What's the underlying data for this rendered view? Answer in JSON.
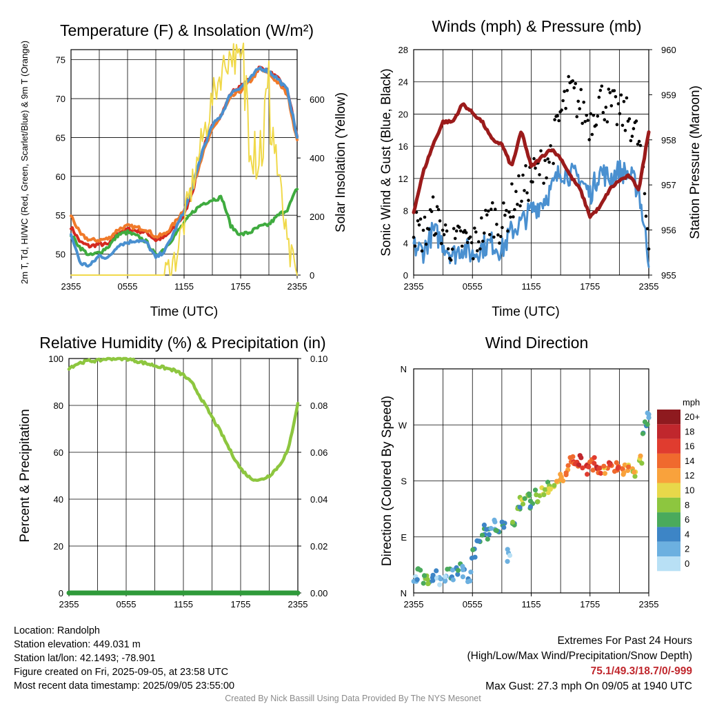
{
  "chart_data": [
    {
      "type": "line",
      "title": "Temperature (F) & Insolation (W/m²)",
      "xlabel": "Time (UTC)",
      "ylabel": "2m T, Td, HI/WC (Red, Green, Scarlet/Blue) & 9m T (Orange)",
      "ylabel_right": "Solar Insolation (Yellow)",
      "x_ticks": [
        "2355",
        "0555",
        "1155",
        "1755",
        "2355"
      ],
      "y_ticks": [
        50,
        55,
        60,
        65,
        70,
        75
      ],
      "y_right_ticks": [
        0,
        200,
        400,
        600
      ],
      "ylim": [
        47.3,
        76.3
      ],
      "ylim_right": [
        0,
        770
      ],
      "x": [
        0,
        1,
        2,
        3,
        4,
        5,
        6,
        7,
        8,
        9,
        10,
        11,
        12,
        13,
        14,
        15,
        16,
        17,
        18,
        19,
        20,
        21,
        22,
        23,
        24
      ],
      "series": [
        {
          "color": "#d42a20",
          "values": [
            53.5,
            51.5,
            51.0,
            51.3,
            51.2,
            52.8,
            53.2,
            53.0,
            52.8,
            51.8,
            52.2,
            53.5,
            55.0,
            58.5,
            63.5,
            66.5,
            68.0,
            70.8,
            71.5,
            72.5,
            74.0,
            73.5,
            72.5,
            71.0,
            65.0
          ]
        },
        {
          "color": "#f07a2a",
          "values": [
            55.0,
            52.5,
            51.8,
            51.8,
            52.0,
            53.2,
            53.6,
            53.4,
            53.2,
            52.2,
            52.6,
            54.0,
            55.8,
            59.0,
            63.0,
            66.0,
            68.0,
            70.2,
            71.0,
            72.2,
            73.8,
            73.2,
            72.0,
            70.5,
            64.5
          ]
        },
        {
          "color": "#3fab3f",
          "values": [
            52.5,
            50.8,
            49.8,
            50.2,
            51.0,
            52.5,
            52.8,
            52.3,
            51.6,
            49.8,
            50.8,
            52.4,
            54.0,
            55.5,
            56.5,
            57.0,
            57.3,
            53.5,
            52.5,
            52.8,
            53.5,
            53.8,
            55.0,
            55.8,
            58.5
          ]
        },
        {
          "color": "#4a90d0",
          "values": [
            52.5,
            48.8,
            48.5,
            49.8,
            49.5,
            51.2,
            51.5,
            51.8,
            51.5,
            49.5,
            50.5,
            53.0,
            55.5,
            59.0,
            63.5,
            66.5,
            68.0,
            70.8,
            71.5,
            72.5,
            74.0,
            73.5,
            72.5,
            71.0,
            65.0
          ]
        },
        {
          "color": "#f0d94a",
          "values": [
            0,
            0,
            0,
            0,
            0,
            0,
            0,
            0,
            0,
            0,
            0,
            50,
            180,
            330,
            470,
            600,
            700,
            760,
            720,
            550,
            420,
            600,
            350,
            80,
            0
          ]
        }
      ]
    },
    {
      "type": "line",
      "title": "Winds (mph) & Pressure (mb)",
      "xlabel": "Time (UTC)",
      "ylabel": "Sonic Wind & Gust (Blue, Black)",
      "ylabel_right": "Station Pressure (Maroon)",
      "x_ticks": [
        "2355",
        "0555",
        "1155",
        "1755",
        "2355"
      ],
      "y_ticks": [
        0,
        4,
        8,
        12,
        16,
        20,
        24,
        28
      ],
      "y_right_ticks": [
        955,
        956,
        957,
        958,
        959,
        960
      ],
      "ylim": [
        0,
        28
      ],
      "ylim_right": [
        955,
        960
      ],
      "x": [
        0,
        1,
        2,
        3,
        4,
        5,
        6,
        7,
        8,
        9,
        10,
        11,
        12,
        13,
        14,
        15,
        16,
        17,
        18,
        19,
        20,
        21,
        22,
        23,
        24
      ],
      "series": [
        {
          "color": "#4a90d0",
          "values": [
            3.5,
            3.0,
            5.5,
            4.0,
            2.5,
            3.5,
            2.5,
            3.5,
            4.0,
            3.0,
            5.5,
            6.5,
            8.0,
            9.0,
            10.5,
            13.0,
            12.5,
            12.0,
            10.0,
            13.0,
            12.0,
            13.0,
            12.5,
            10.5,
            2.0
          ]
        },
        {
          "color": "#000000",
          "values": [
            6.0,
            5.0,
            7.5,
            5.5,
            3.5,
            4.5,
            3.5,
            5.5,
            7.5,
            6.0,
            9.0,
            10.5,
            12.0,
            13.5,
            15.0,
            20.0,
            23.0,
            21.0,
            19.0,
            22.0,
            21.0,
            20.0,
            19.5,
            16.5,
            4.0
          ]
        },
        {
          "color": "#9b1b1b",
          "values": [
            956.4,
            957.3,
            957.9,
            958.4,
            958.4,
            958.8,
            958.6,
            958.4,
            958.0,
            957.9,
            957.4,
            958.2,
            957.4,
            957.6,
            957.8,
            957.6,
            957.2,
            956.9,
            956.3,
            956.5,
            956.9,
            957.1,
            957.2,
            956.9,
            958.2
          ]
        }
      ]
    },
    {
      "type": "line",
      "title": "Relative Humidity (%) & Precipitation (in)",
      "ylabel": "Percent & Precipitation",
      "x_ticks": [
        "2355",
        "0555",
        "1155",
        "1755",
        "2355"
      ],
      "y_ticks": [
        0,
        20,
        40,
        60,
        80,
        100
      ],
      "y_right_ticks": [
        "0.00",
        "0.02",
        "0.04",
        "0.06",
        "0.08",
        "0.10"
      ],
      "ylim": [
        0,
        100
      ],
      "ylim_right": [
        0,
        0.1
      ],
      "x": [
        0,
        1,
        2,
        3,
        4,
        5,
        6,
        7,
        8,
        9,
        10,
        11,
        12,
        13,
        14,
        15,
        16,
        17,
        18,
        19,
        20,
        21,
        22,
        23,
        24
      ],
      "series": [
        {
          "color": "#8dc63f",
          "values": [
            96,
            98,
            99,
            99,
            100,
            100,
            100,
            99,
            98,
            97,
            96,
            95,
            93,
            89,
            82,
            75,
            68,
            60,
            53,
            49,
            48,
            50,
            54,
            61,
            81
          ]
        },
        {
          "color": "#2f9a3a",
          "values": [
            0,
            0,
            0,
            0,
            0,
            0,
            0,
            0,
            0,
            0,
            0,
            0,
            0,
            0,
            0,
            0,
            0,
            0,
            0,
            0,
            0,
            0,
            0,
            0,
            0
          ]
        }
      ]
    },
    {
      "type": "scatter",
      "title": "Wind Direction",
      "ylabel": "Direction (Colored By Speed)",
      "x_ticks": [
        "2355",
        "0555",
        "1155",
        "1755",
        "2355"
      ],
      "y_ticks": [
        "N",
        "E",
        "S",
        "W",
        "N"
      ],
      "ylim": [
        0,
        360
      ],
      "legend": {
        "title": "mph",
        "labels": [
          "20+",
          "18",
          "16",
          "14",
          "12",
          "10",
          "8",
          "6",
          "4",
          "2",
          "0"
        ],
        "colors": [
          "#8e1a1f",
          "#c0272d",
          "#e03c2f",
          "#f06a2e",
          "#f9a23c",
          "#e8d84a",
          "#8dc63f",
          "#4aaa5c",
          "#3d85c6",
          "#6cb0e0",
          "#b8e0f5"
        ],
        "placement": "right"
      },
      "x": [
        0,
        0.5,
        1,
        1.5,
        2,
        2.5,
        3,
        3.5,
        4,
        4.5,
        5,
        5.5,
        6,
        6.5,
        7,
        7.5,
        8,
        8.5,
        9,
        9.5,
        10,
        10.5,
        11,
        11.5,
        12,
        12.5,
        13,
        13.5,
        14,
        14.5,
        15,
        15.5,
        16,
        16.5,
        17,
        17.5,
        18,
        18.5,
        19,
        19.5,
        20,
        20.5,
        21,
        21.5,
        22,
        22.5,
        23,
        23.5,
        24
      ],
      "values": [
        25,
        30,
        20,
        22,
        25,
        18,
        20,
        28,
        32,
        40,
        35,
        25,
        60,
        80,
        100,
        95,
        110,
        90,
        105,
        60,
        120,
        130,
        145,
        150,
        140,
        155,
        160,
        170,
        165,
        180,
        185,
        200,
        210,
        205,
        210,
        200,
        205,
        210,
        200,
        195,
        205,
        200,
        195,
        198,
        200,
        195,
        210,
        265,
        280
      ],
      "speeds": [
        2,
        4,
        6,
        6,
        4,
        2,
        2,
        4,
        2,
        4,
        2,
        2,
        4,
        4,
        4,
        4,
        2,
        4,
        4,
        2,
        6,
        6,
        8,
        8,
        4,
        6,
        8,
        8,
        8,
        10,
        12,
        12,
        14,
        14,
        16,
        16,
        14,
        16,
        14,
        12,
        16,
        14,
        14,
        12,
        12,
        10,
        10,
        4,
        4
      ]
    }
  ],
  "info": {
    "location": "Location: Randolph",
    "elevation": "Station elevation: 449.031 m",
    "latlon": "Station lat/lon: 42.1493; -78.901",
    "created": "Figure created on Fri, 2025-09-05, at 23:58 UTC",
    "recent": "Most recent data timestamp: 2025/09/05 23:55:00"
  },
  "extremes": {
    "heading": "Extremes For Past 24 Hours",
    "subheading": "(High/Low/Max Wind/Precipitation/Snow Depth)",
    "values": "75.1/49.3/18.7/0/-999",
    "gust": "Max Gust: 27.3 mph On 09/05 at 1940 UTC"
  },
  "credit": "Created By Nick Bassill Using Data Provided By The NYS Mesonet"
}
